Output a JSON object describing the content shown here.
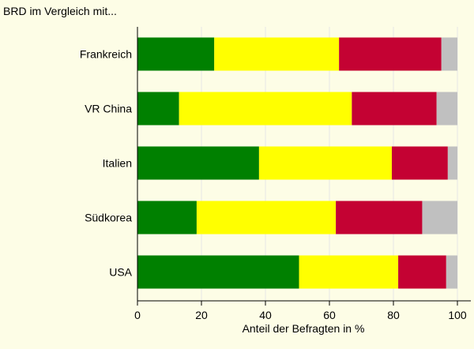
{
  "chart_data": {
    "type": "bar",
    "orientation": "horizontal",
    "stacked": true,
    "title": "BRD im Vergleich mit...",
    "xlabel": "Anteil der Befragten in %",
    "ylabel": "",
    "xlim": [
      0,
      100
    ],
    "xticks": [
      0,
      20,
      40,
      60,
      80,
      100
    ],
    "grid": true,
    "legend": "none",
    "categories": [
      "Frankreich",
      "VR China",
      "Italien",
      "Südkorea",
      "USA"
    ],
    "series": [
      {
        "color": "#008000",
        "values": [
          24,
          13,
          38,
          18.5,
          50.5
        ]
      },
      {
        "color": "#ffff00",
        "values": [
          39,
          54,
          41.5,
          43.5,
          31
        ]
      },
      {
        "color": "#c40233",
        "values": [
          32,
          26.5,
          17.5,
          27,
          15
        ]
      },
      {
        "color": "#c0c0c0",
        "values": [
          5,
          6.5,
          3,
          11,
          3.5
        ]
      }
    ]
  }
}
